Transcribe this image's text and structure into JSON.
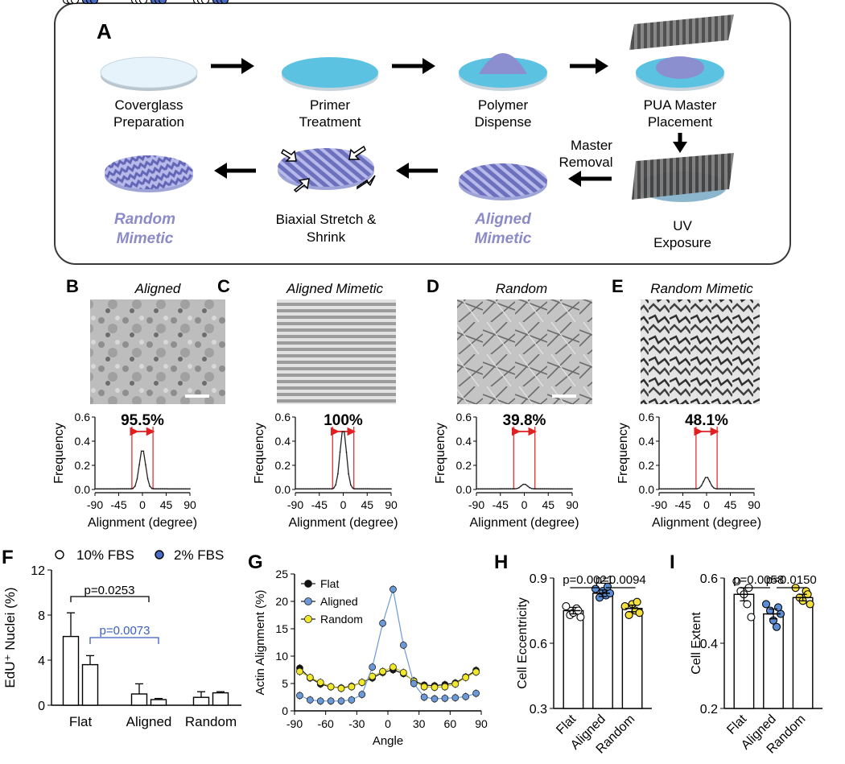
{
  "panels": {
    "A": "A",
    "B": "B",
    "C": "C",
    "D": "D",
    "E": "E",
    "F": "F",
    "G": "G",
    "H": "H",
    "I": "I"
  },
  "workflow": {
    "step1": [
      "Coverglass",
      "Preparation"
    ],
    "step2": [
      "Primer",
      "Treatment"
    ],
    "step3": [
      "Polymer",
      "Dispense"
    ],
    "step4": [
      "PUA Master",
      "Placement"
    ],
    "step5": [
      "UV",
      "Exposure"
    ],
    "removal": [
      "Master",
      "Removal"
    ],
    "aligned_mimetic": [
      "Aligned",
      "Mimetic"
    ],
    "biaxial": [
      "Biaxial Stretch &",
      "Shrink"
    ],
    "random_mimetic": [
      "Random",
      "Mimetic"
    ],
    "colors": {
      "disk_light": "#e6f3fa",
      "disk_blue": "#5bc2e2",
      "polymer": "#8b8fd0",
      "master": "#5a5a5a",
      "label_purple": "#8b8bc8"
    }
  },
  "image_titles": {
    "B": "Aligned",
    "C": "Aligned Mimetic",
    "D": "Random",
    "E": "Random Mimetic"
  },
  "freq_plots": {
    "ylabel": "Frequency",
    "xlabel": "Alignment (degree)",
    "yticks": [
      "0.0",
      "0.2",
      "0.4",
      "0.6"
    ],
    "xticks": [
      "-90",
      "-45",
      "0",
      "45",
      "90"
    ],
    "percents": {
      "B": "95.5%",
      "C": "100%",
      "D": "39.8%",
      "E": "48.1%"
    },
    "peaks": {
      "B": 0.33,
      "C": 0.5,
      "D": 0.04,
      "E": 0.1
    }
  },
  "chart_data": [
    {
      "panel": "F",
      "type": "bar",
      "ylabel": "EdU⁺ Nuclei (%)",
      "ylim": [
        0,
        12
      ],
      "yticks": [
        "0",
        "4",
        "8",
        "12"
      ],
      "categories": [
        "Flat",
        "Aligned",
        "Random"
      ],
      "series": [
        {
          "name": "10% FBS",
          "values": [
            6.1,
            1.0,
            0.7
          ],
          "errors": [
            2.1,
            0.9,
            0.5
          ],
          "points": [
            [
              10.0,
              6.0,
              2.0
            ],
            [
              0.0,
              0.0,
              2.5
            ],
            [
              0.3,
              0.2,
              1.3
            ]
          ],
          "color": "#ffffff"
        },
        {
          "name": "2% FBS",
          "values": [
            3.6,
            0.5,
            1.1
          ],
          "errors": [
            0.8,
            0.1,
            0.1
          ],
          "points": [
            [
              2.5,
              5.4,
              3.0
            ],
            [
              0.5,
              0.6,
              0.5
            ],
            [
              0.9,
              1.2,
              1.1
            ]
          ],
          "color": "#4a6cc4"
        }
      ],
      "annotations": [
        {
          "text": "p=0.0253",
          "color": "#000000"
        },
        {
          "text": "p=0.0073",
          "color": "#3b5fc0"
        }
      ],
      "legend": "top"
    },
    {
      "panel": "G",
      "type": "line",
      "xlabel": "Angle",
      "ylabel": "Actin Alignment (%)",
      "xlim": [
        -90,
        90
      ],
      "ylim": [
        0,
        25
      ],
      "xticks": [
        "-90",
        "-60",
        "-30",
        "0",
        "30",
        "60",
        "90"
      ],
      "yticks": [
        "0",
        "5",
        "10",
        "15",
        "20",
        "25"
      ],
      "x": [
        -85,
        -75,
        -65,
        -55,
        -45,
        -35,
        -25,
        -15,
        -5,
        5,
        15,
        25,
        35,
        45,
        55,
        65,
        75,
        85
      ],
      "series": [
        {
          "name": "Flat",
          "color": "#111111",
          "values": [
            7.8,
            6.0,
            4.9,
            4.4,
            4.2,
            4.5,
            5.2,
            6.0,
            7.0,
            7.5,
            6.8,
            5.5,
            4.7,
            4.6,
            4.8,
            5.1,
            6.2,
            7.4
          ]
        },
        {
          "name": "Aligned",
          "color": "#6c9ad8",
          "values": [
            2.8,
            2.0,
            1.8,
            1.8,
            1.8,
            2.0,
            3.0,
            8.0,
            16.0,
            22.2,
            12.0,
            5.0,
            2.5,
            2.2,
            2.3,
            2.4,
            2.6,
            3.2
          ]
        },
        {
          "name": "Random",
          "color": "#f2e82a",
          "values": [
            7.2,
            6.1,
            5.2,
            4.4,
            4.1,
            4.4,
            5.2,
            6.3,
            7.2,
            8.0,
            7.0,
            5.4,
            4.4,
            4.3,
            4.4,
            4.9,
            6.1,
            7.1
          ]
        }
      ],
      "legend": "top-left"
    },
    {
      "panel": "H",
      "type": "bar",
      "ylabel": "Cell Eccentricity",
      "ylim": [
        0.3,
        0.9
      ],
      "yticks": [
        "0.3",
        "0.6",
        "0.9"
      ],
      "categories": [
        "Flat",
        "Aligned",
        "Random"
      ],
      "values": [
        0.75,
        0.83,
        0.76
      ],
      "errors": [
        0.015,
        0.015,
        0.015
      ],
      "points": [
        [
          0.77,
          0.73,
          0.74,
          0.76,
          0.72,
          0.75
        ],
        [
          0.85,
          0.81,
          0.84,
          0.82,
          0.83,
          0.86
        ],
        [
          0.77,
          0.73,
          0.78,
          0.75,
          0.74,
          0.79
        ]
      ],
      "colors": [
        "#ffffff",
        "#5b8ed6",
        "#f5e13a"
      ],
      "annotations": [
        {
          "text": "p=0.0021"
        },
        {
          "text": "p=0.0094"
        }
      ]
    },
    {
      "panel": "I",
      "type": "bar",
      "ylabel": "Cell Extent",
      "ylim": [
        0.2,
        0.6
      ],
      "yticks": [
        "0.2",
        "0.4",
        "0.6"
      ],
      "categories": [
        "Flat",
        "Aligned",
        "Random"
      ],
      "values": [
        0.55,
        0.49,
        0.54
      ],
      "errors": [
        0.02,
        0.015,
        0.01
      ],
      "points": [
        [
          0.59,
          0.56,
          0.55,
          0.52,
          0.48,
          0.57
        ],
        [
          0.52,
          0.5,
          0.47,
          0.45,
          0.49,
          0.51
        ],
        [
          0.57,
          0.54,
          0.53,
          0.56,
          0.52,
          0.55
        ]
      ],
      "colors": [
        "#ffffff",
        "#5b8ed6",
        "#f5e13a"
      ],
      "annotations": [
        {
          "text": "p=0.0058"
        },
        {
          "text": "p=0.0150"
        }
      ]
    }
  ]
}
